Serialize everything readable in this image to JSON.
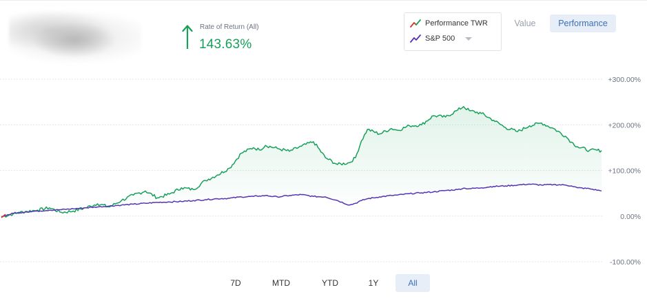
{
  "metric": {
    "label": "Rate of Return (All)",
    "value": "143.63%",
    "direction": "up",
    "color": "#16a05a"
  },
  "legend": {
    "items": [
      {
        "label": "Performance TWR",
        "icon": "red-green-line-icon"
      },
      {
        "label": "S&P 500",
        "icon": "purple-line-icon",
        "has_dropdown": true
      }
    ]
  },
  "view_toggle": {
    "options": [
      "Value",
      "Performance"
    ],
    "selected": "Performance"
  },
  "time_ranges": {
    "options": [
      "7D",
      "MTD",
      "YTD",
      "1Y",
      "All"
    ],
    "selected": "All"
  },
  "chart_data": {
    "type": "line",
    "title": "",
    "xlabel": "",
    "ylabel": "",
    "ylim": [
      -100,
      300
    ],
    "yticks": [
      300,
      200,
      100,
      0,
      -100
    ],
    "ytick_labels": [
      "+300.00%",
      "+200.00%",
      "+100.00%",
      "0.00%",
      "-100.00%"
    ],
    "grid": true,
    "legend_position": "top-right",
    "colors": {
      "portfolio": "#16a05a",
      "benchmark": "#5534b3",
      "fill": "#16a05a"
    },
    "x": [
      0,
      0.02,
      0.04,
      0.06,
      0.08,
      0.1,
      0.12,
      0.14,
      0.16,
      0.18,
      0.2,
      0.22,
      0.24,
      0.26,
      0.28,
      0.3,
      0.32,
      0.34,
      0.36,
      0.38,
      0.4,
      0.42,
      0.43,
      0.44,
      0.46,
      0.48,
      0.5,
      0.52,
      0.54,
      0.56,
      0.58,
      0.59,
      0.6,
      0.61,
      0.63,
      0.65,
      0.66,
      0.68,
      0.7,
      0.72,
      0.74,
      0.76,
      0.77,
      0.78,
      0.8,
      0.82,
      0.84,
      0.86,
      0.88,
      0.9,
      0.92,
      0.94,
      0.95,
      0.96,
      0.98,
      1.0
    ],
    "series": [
      {
        "name": "Performance TWR",
        "values": [
          -2,
          5,
          10,
          13,
          18,
          8,
          11,
          18,
          27,
          20,
          34,
          46,
          55,
          40,
          48,
          62,
          58,
          78,
          90,
          105,
          138,
          150,
          145,
          155,
          148,
          142,
          153,
          163,
          128,
          113,
          117,
          128,
          165,
          190,
          180,
          192,
          188,
          198,
          200,
          220,
          217,
          232,
          240,
          231,
          225,
          210,
          194,
          185,
          198,
          204,
          192,
          175,
          162,
          152,
          144,
          143.63
        ]
      },
      {
        "name": "S&P 500",
        "values": [
          -1,
          6,
          9,
          11,
          13,
          14,
          16,
          18,
          20,
          22,
          24,
          26,
          28,
          30,
          31,
          32,
          34,
          36,
          38,
          39,
          42,
          43,
          44,
          45,
          42,
          45,
          47,
          43,
          42,
          34,
          24,
          28,
          34,
          38,
          42,
          45,
          46,
          49,
          51,
          53,
          56,
          58,
          61,
          60,
          62,
          65,
          66,
          68,
          70,
          68,
          69,
          68,
          66,
          62,
          60,
          55
        ]
      }
    ]
  }
}
